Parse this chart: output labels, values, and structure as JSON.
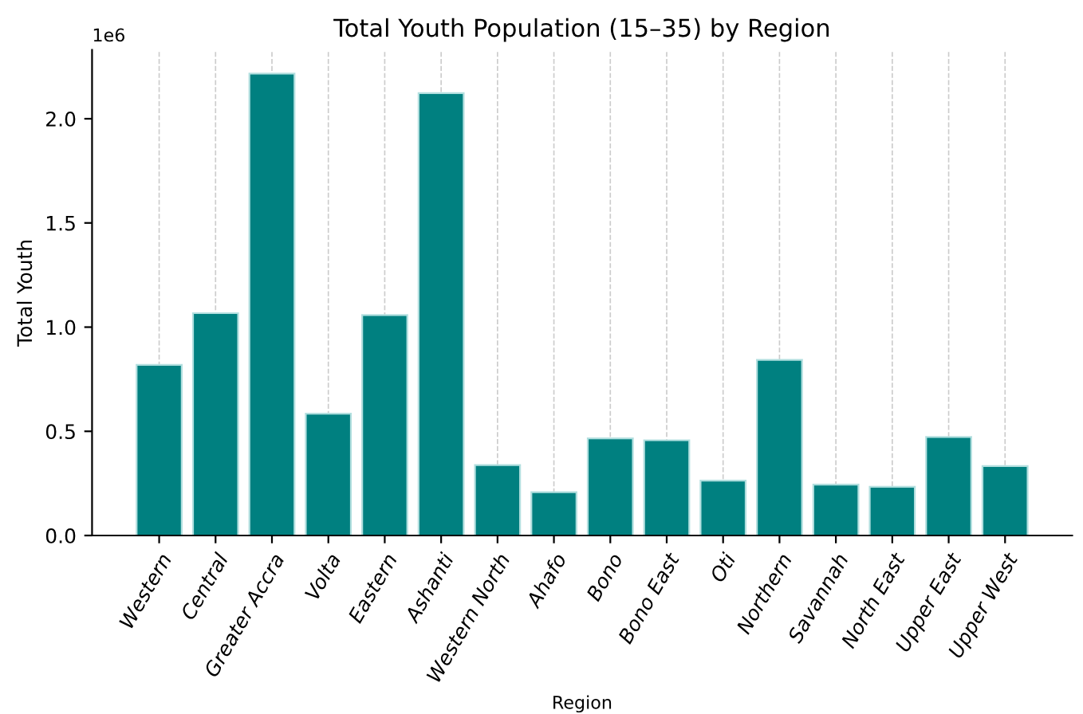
{
  "chart_data": {
    "type": "bar",
    "title": "Total Youth Population (15–35) by Region",
    "xlabel": "Region",
    "ylabel": "Total Youth",
    "categories": [
      "Western",
      "Central",
      "Greater Accra",
      "Volta",
      "Eastern",
      "Ashanti",
      "Western North",
      "Ahafo",
      "Bono",
      "Bono East",
      "Oti",
      "Northern",
      "Savannah",
      "North East",
      "Upper East",
      "Upper West"
    ],
    "values": [
      0.819,
      1.067,
      2.217,
      0.585,
      1.058,
      2.123,
      0.338,
      0.208,
      0.466,
      0.457,
      0.263,
      0.843,
      0.244,
      0.234,
      0.473,
      0.333
    ],
    "color": "#008080",
    "ylim": [
      0,
      2.33
    ],
    "yticks": [
      {
        "value": 0,
        "label": "0.0"
      },
      {
        "value": 0.5,
        "label": "0.5"
      },
      {
        "value": 1,
        "label": "1.0"
      },
      {
        "value": 1.5,
        "label": "1.5"
      },
      {
        "value": 2,
        "label": "2.0"
      }
    ],
    "annotations": [
      "1e6"
    ],
    "grid": "x"
  }
}
